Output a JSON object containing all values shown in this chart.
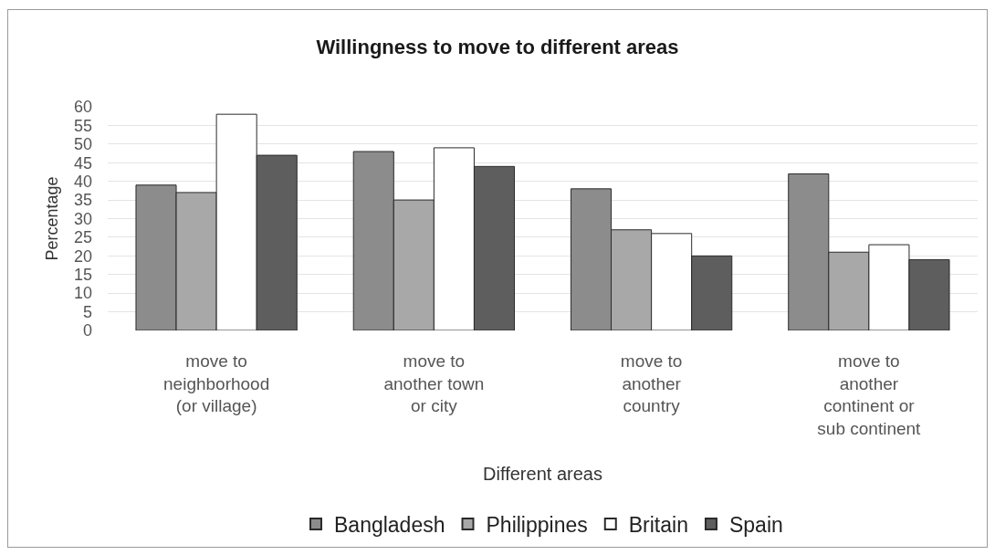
{
  "chart_data": {
    "type": "bar",
    "title": "Willingness to move to different areas",
    "xlabel": "Different areas",
    "ylabel": "Percentage",
    "categories": [
      "move to neighborhood (or village)",
      "move to another town or city",
      "move to another country",
      "move to another continent or sub continent"
    ],
    "series": [
      {
        "name": "Bangladesh",
        "color": "#8c8c8c",
        "values": [
          39,
          48,
          38,
          42
        ]
      },
      {
        "name": "Philippines",
        "color": "#a8a8a8",
        "values": [
          37,
          35,
          27,
          21
        ]
      },
      {
        "name": "Britain",
        "color": "#ffffff",
        "values": [
          58,
          49,
          26,
          23
        ]
      },
      {
        "name": "Spain",
        "color": "#5e5e5e",
        "values": [
          47,
          44,
          20,
          19
        ]
      }
    ],
    "ylim": [
      0,
      60
    ],
    "yticks": [
      0,
      5,
      10,
      15,
      20,
      25,
      30,
      35,
      40,
      45,
      50,
      55,
      60
    ],
    "grid": "y",
    "legend": "bottom"
  }
}
